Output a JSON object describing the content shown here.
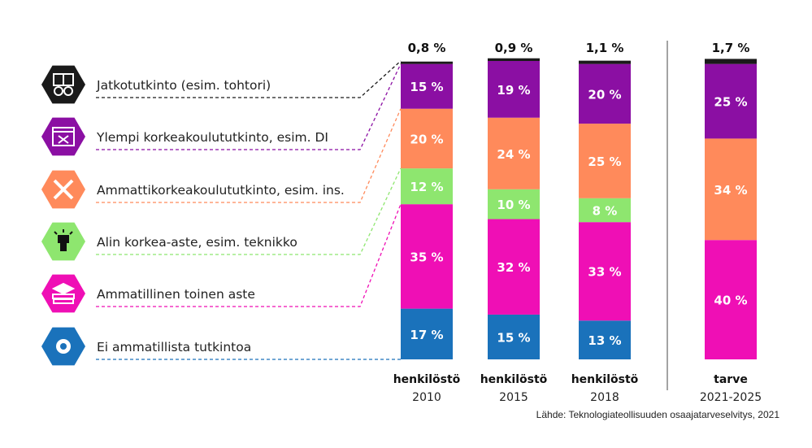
{
  "chart_data": {
    "type": "bar",
    "stacked": true,
    "categories": [
      {
        "label": "henkilöstö",
        "sublabel": "2010"
      },
      {
        "label": "henkilöstö",
        "sublabel": "2015"
      },
      {
        "label": "henkilöstö",
        "sublabel": "2018"
      },
      {
        "label": "tarve",
        "sublabel": "2021-2025"
      }
    ],
    "series": [
      {
        "name": "Ei ammatillista tutkintoa",
        "color": "#1a72bb",
        "icon": "nut-icon",
        "values": [
          17,
          15,
          13,
          0
        ],
        "labels": [
          "17 %",
          "15 %",
          "13 %",
          ""
        ]
      },
      {
        "name": "Ammatillinen toinen aste",
        "color": "#ef0fb5",
        "icon": "books-graduation-cap-icon",
        "values": [
          35,
          32,
          33,
          40
        ],
        "labels": [
          "35 %",
          "32 %",
          "33 %",
          "40 %"
        ]
      },
      {
        "name": "Alin korkea-aste, esim. teknikko",
        "color": "#8ee66f",
        "icon": "raised-fist-icon",
        "values": [
          12,
          10,
          8,
          0
        ],
        "labels": [
          "12 %",
          "10 %",
          "8 %",
          ""
        ]
      },
      {
        "name": "Ammattikorkeakoulututkinto, esim. ins.",
        "color": "#ff8a5b",
        "icon": "crossed-tools-icon",
        "values": [
          20,
          24,
          25,
          34
        ],
        "labels": [
          "20 %",
          "24 %",
          "25 %",
          "34 %"
        ]
      },
      {
        "name": "Ylempi korkeakoulututkinto, esim. DI",
        "color": "#8b0fa3",
        "icon": "browser-window-tools-icon",
        "values": [
          15,
          19,
          20,
          25
        ],
        "labels": [
          "15 %",
          "19 %",
          "20 %",
          "25 %"
        ]
      },
      {
        "name": "Jatkotutkinto (esim. tohtori)",
        "color": "#1a1a1a",
        "icon": "books-glasses-icon",
        "values": [
          0.8,
          0.9,
          1.1,
          1.7
        ],
        "labels": [
          "0,8 %",
          "0,9 %",
          "1,1 %",
          "1,7 %"
        ]
      }
    ],
    "ylim": [
      0,
      100
    ],
    "source": "Lähde: Teknologiateollisuuden osaajatarveselvitys, 2021"
  }
}
